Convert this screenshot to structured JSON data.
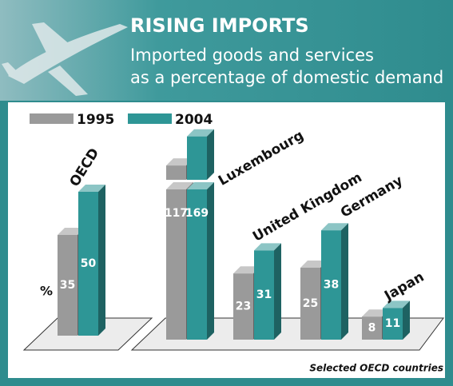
{
  "chart_data": {
    "type": "bar3d",
    "title": "RISING IMPORTS",
    "subtitle": [
      "Imported goods and services",
      "as a percentage of domestic demand"
    ],
    "y_label": "%",
    "note": "Selected OECD countries",
    "categories": [
      "OECD",
      "Luxembourg",
      "United Kingdom",
      "Germany",
      "Japan"
    ],
    "series": [
      {
        "name": "1995",
        "color": "#9a9a9a",
        "values": [
          35,
          117,
          23,
          25,
          8
        ]
      },
      {
        "name": "2004",
        "color": "#2e9696",
        "values": [
          50,
          169,
          31,
          38,
          11
        ]
      }
    ]
  }
}
